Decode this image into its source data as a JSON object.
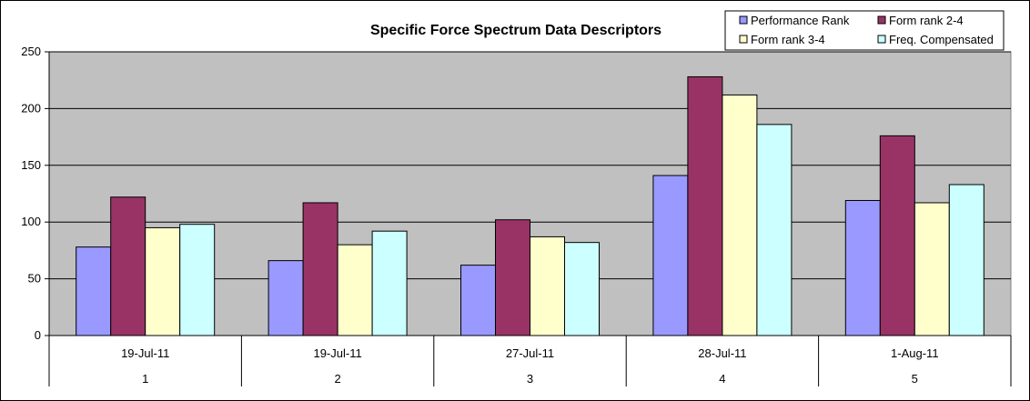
{
  "chart_data": {
    "type": "bar",
    "title": "Specific Force Spectrum Data Descriptors",
    "xlabel": "",
    "ylabel": "",
    "ylim": [
      0,
      250
    ],
    "yticks": [
      0,
      50,
      100,
      150,
      200,
      250
    ],
    "grid": true,
    "legend_position": "top-right",
    "categories": [
      {
        "date": "19-Jul-11",
        "index": "1"
      },
      {
        "date": "19-Jul-11",
        "index": "2"
      },
      {
        "date": "27-Jul-11",
        "index": "3"
      },
      {
        "date": "28-Jul-11",
        "index": "4"
      },
      {
        "date": "1-Aug-11",
        "index": "5"
      }
    ],
    "series": [
      {
        "name": "Performance Rank",
        "color": "#9999FF",
        "values": [
          78,
          66,
          62,
          141,
          119
        ]
      },
      {
        "name": "Form rank 2-4",
        "color": "#993366",
        "values": [
          122,
          117,
          102,
          228,
          176
        ]
      },
      {
        "name": "Form rank 3-4",
        "color": "#FFFFCC",
        "values": [
          95,
          80,
          87,
          212,
          117
        ]
      },
      {
        "name": "Freq. Compensated",
        "color": "#CCFFFF",
        "values": [
          98,
          92,
          82,
          186,
          133
        ]
      }
    ],
    "plot_background": "#C0C0C0"
  }
}
